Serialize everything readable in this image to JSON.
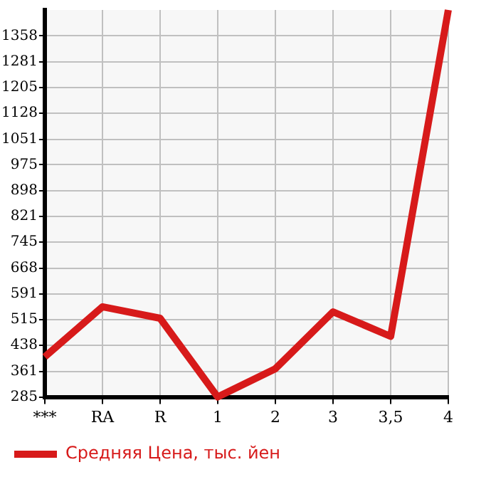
{
  "chart_data": {
    "type": "line",
    "categories": [
      "***",
      "RA",
      "R",
      "1",
      "2",
      "3",
      "3,5",
      "4"
    ],
    "series": [
      {
        "name": "Средняя Цена, тыс. йен",
        "color": "#d71a1a",
        "values": [
          404,
          553,
          519,
          285,
          369,
          538,
          465,
          1435
        ]
      }
    ],
    "ylim": [
      285,
      1435
    ],
    "yticks": [
      285,
      361,
      438,
      515,
      591,
      668,
      745,
      821,
      898,
      975,
      1051,
      1128,
      1205,
      1281,
      1358
    ],
    "grid": true,
    "legend": "bottom",
    "marker": "none",
    "line_style": "solid"
  }
}
